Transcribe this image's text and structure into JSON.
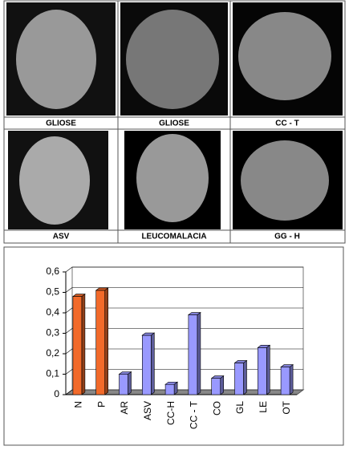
{
  "panels": [
    {
      "label": "GLIOSE"
    },
    {
      "label": "GLIOSE"
    },
    {
      "label": "CC - T"
    },
    {
      "label": "ASV"
    },
    {
      "label": "LEUCOMALACIA"
    },
    {
      "label": "GG - H"
    }
  ],
  "chart_data": {
    "type": "bar",
    "categories": [
      "N",
      "P",
      "AR",
      "ASV",
      "CC-H",
      "CC - T",
      "CO",
      "GL",
      "LE",
      "OT"
    ],
    "values": [
      0.48,
      0.51,
      0.1,
      0.29,
      0.05,
      0.39,
      0.08,
      0.155,
      0.23,
      0.135
    ],
    "colors": [
      "#f26a2a",
      "#f26a2a",
      "#9999ff",
      "#9999ff",
      "#9999ff",
      "#9999ff",
      "#9999ff",
      "#9999ff",
      "#9999ff",
      "#9999ff"
    ],
    "ylim": [
      0,
      0.6
    ],
    "yticks": [
      0,
      {
        "value": 0.1,
        "label": "0,1"
      },
      {
        "value": 0.2,
        "label": "0,2"
      },
      {
        "value": 0.3,
        "label": "0,3"
      },
      {
        "value": 0.4,
        "label": "0,4"
      },
      {
        "value": 0.5,
        "label": "0,5"
      },
      {
        "value": 0.6,
        "label": "0,6"
      }
    ],
    "grid": true
  }
}
